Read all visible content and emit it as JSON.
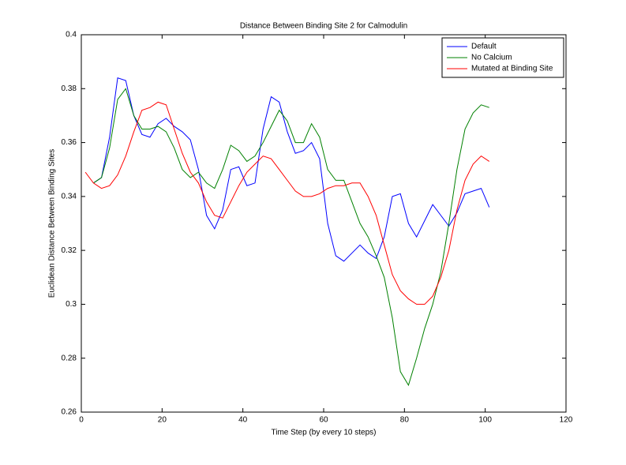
{
  "chart_data": {
    "type": "line",
    "title": "Distance Between Binding Site 2 for Calmodulin",
    "x_label": "Time Step (by every 10 steps)",
    "y_label": "Euclidean Distance Between Binding Sites",
    "x": [
      1,
      3,
      5,
      7,
      9,
      11,
      13,
      15,
      17,
      19,
      21,
      23,
      25,
      27,
      29,
      31,
      33,
      35,
      37,
      39,
      41,
      43,
      45,
      47,
      49,
      51,
      53,
      55,
      57,
      59,
      61,
      63,
      65,
      67,
      69,
      71,
      73,
      75,
      77,
      79,
      81,
      83,
      85,
      87,
      89,
      91,
      93,
      95,
      97,
      99,
      101
    ],
    "series": [
      {
        "name": "Default",
        "color": "#0000ff",
        "values": [
          null,
          0.345,
          0.347,
          0.362,
          0.384,
          0.383,
          0.37,
          0.363,
          0.362,
          0.367,
          0.369,
          0.366,
          0.364,
          0.361,
          0.35,
          0.333,
          0.328,
          0.335,
          0.35,
          0.351,
          0.344,
          0.345,
          0.365,
          0.377,
          0.375,
          0.364,
          0.356,
          0.357,
          0.36,
          0.354,
          0.33,
          0.318,
          0.316,
          0.319,
          0.322,
          0.319,
          0.317,
          0.325,
          0.34,
          0.341,
          0.33,
          0.325,
          0.331,
          0.337,
          0.333,
          0.329,
          0.334,
          0.341,
          0.342,
          0.343,
          0.336
        ]
      },
      {
        "name": "No Calcium",
        "color": "#008000",
        "values": [
          null,
          0.345,
          0.347,
          0.358,
          0.376,
          0.38,
          0.37,
          0.365,
          0.365,
          0.366,
          0.364,
          0.358,
          0.35,
          0.347,
          0.349,
          0.345,
          0.343,
          0.35,
          0.359,
          0.357,
          0.353,
          0.355,
          0.36,
          0.366,
          0.372,
          0.368,
          0.36,
          0.36,
          0.367,
          0.362,
          0.35,
          0.346,
          0.346,
          0.338,
          0.33,
          0.325,
          0.318,
          0.31,
          0.295,
          0.275,
          0.27,
          0.28,
          0.291,
          0.3,
          0.312,
          0.33,
          0.35,
          0.365,
          0.371,
          0.374,
          0.373
        ]
      },
      {
        "name": "Mutated at Binding Site",
        "color": "#ff0000",
        "values": [
          0.349,
          0.345,
          0.343,
          0.344,
          0.348,
          0.355,
          0.364,
          0.372,
          0.373,
          0.375,
          0.374,
          0.365,
          0.356,
          0.349,
          0.345,
          0.338,
          0.333,
          0.332,
          0.338,
          0.344,
          0.349,
          0.352,
          0.355,
          0.354,
          0.35,
          0.346,
          0.342,
          0.34,
          0.34,
          0.341,
          0.343,
          0.344,
          0.344,
          0.345,
          0.345,
          0.34,
          0.333,
          0.322,
          0.311,
          0.305,
          0.302,
          0.3,
          0.3,
          0.303,
          0.31,
          0.32,
          0.335,
          0.346,
          0.352,
          0.355,
          0.353
        ]
      }
    ],
    "xlim": [
      0,
      120
    ],
    "xticks": [
      0,
      20,
      40,
      60,
      80,
      100,
      120
    ],
    "ylim": [
      0.26,
      0.4
    ],
    "yticks": [
      0.26,
      0.28,
      0.3,
      0.32,
      0.34,
      0.36,
      0.38,
      0.4
    ],
    "legend": "northeast"
  }
}
